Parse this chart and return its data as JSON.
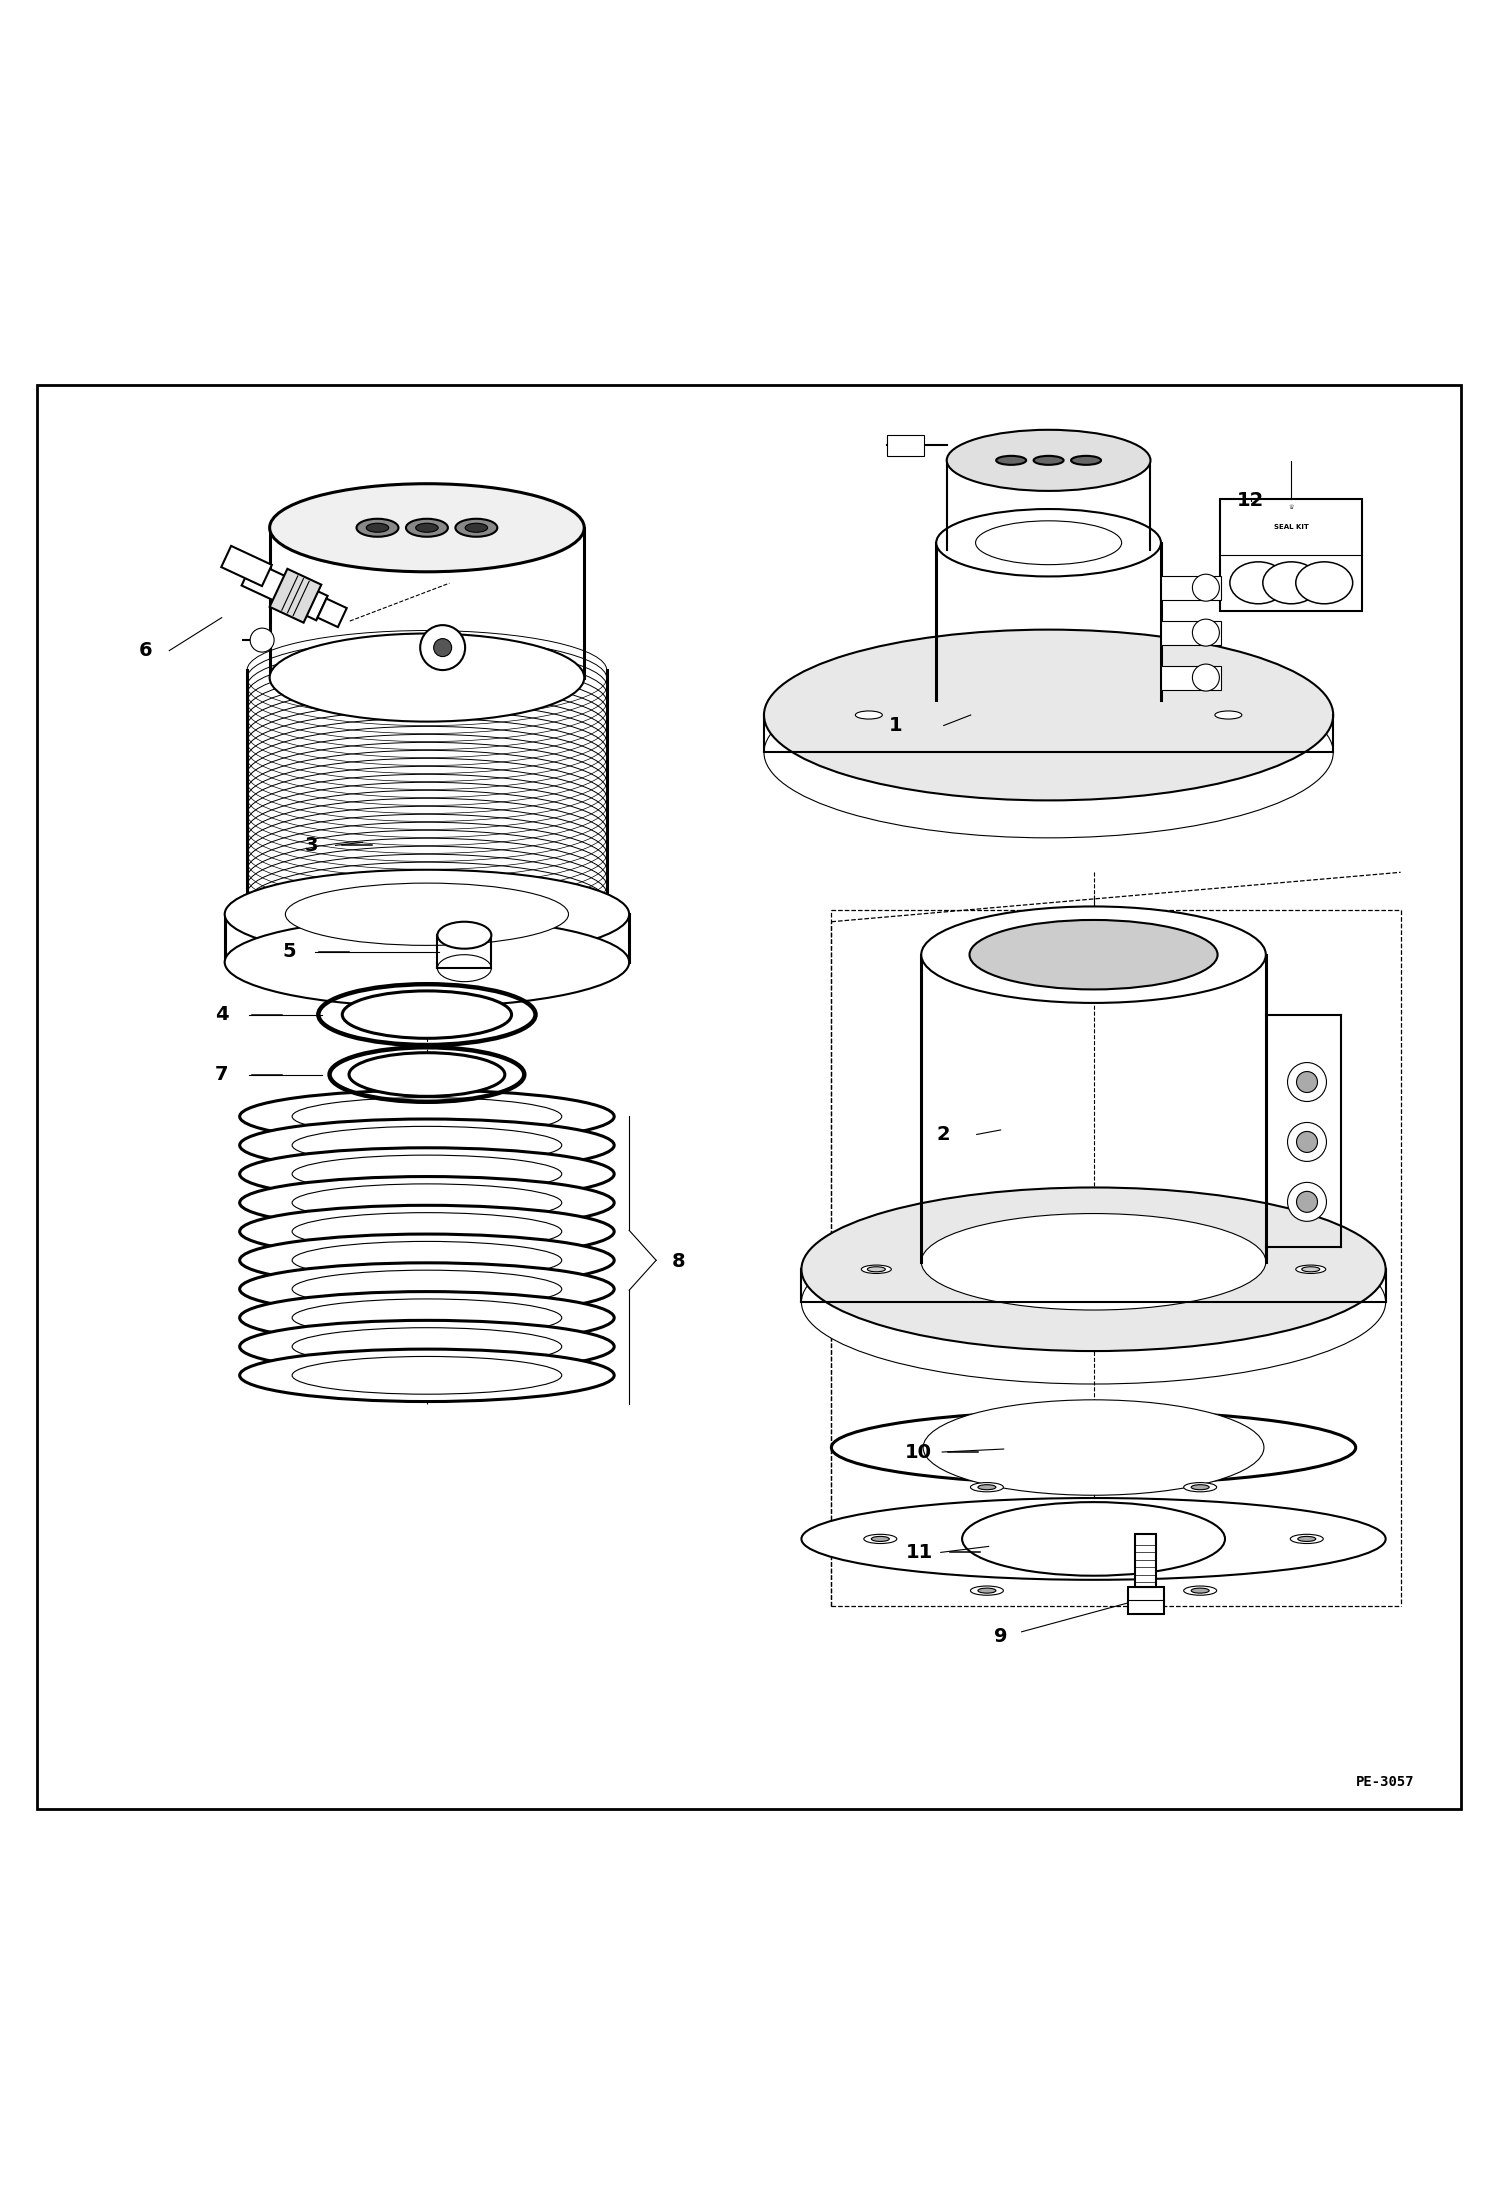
{
  "bg_color": "#ffffff",
  "line_color": "#000000",
  "fig_width": 14.98,
  "fig_height": 21.94,
  "dpi": 100,
  "page_code": "PE-3057",
  "lw_thin": 0.8,
  "lw_med": 1.5,
  "lw_thick": 2.2
}
